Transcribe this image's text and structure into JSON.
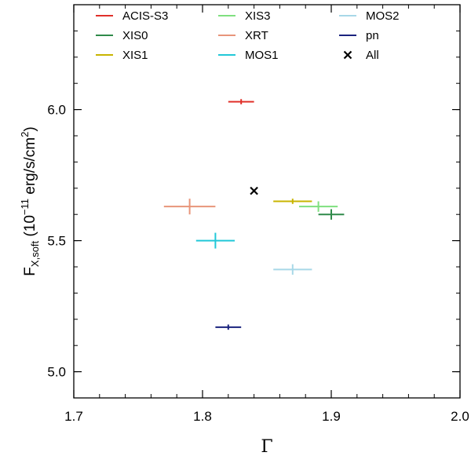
{
  "chart_data": {
    "type": "scatter",
    "title": "",
    "xlabel": "Γ",
    "ylabel": {
      "base": "F",
      "subscript": "X,soft",
      "open": " (10",
      "exponent": "−11",
      "unit": " erg/s/cm",
      "unit_exponent": "2",
      "close": ")"
    },
    "xlim": [
      1.7,
      2.0
    ],
    "ylim": [
      4.9,
      6.4
    ],
    "x_ticks": [
      1.7,
      1.8,
      1.9,
      2.0
    ],
    "x_tick_labels": [
      "1.7",
      "1.8",
      "1.9",
      "2.0"
    ],
    "y_ticks": [
      5.0,
      5.5,
      6.0
    ],
    "y_tick_labels": [
      "5.0",
      "5.5",
      "6.0"
    ],
    "x_minor_step": 0.02,
    "y_minor_step": 0.1,
    "grid": false,
    "legend_position": "top",
    "series": [
      {
        "name": "ACIS-S3",
        "color": "#e0302a",
        "marker": "errorbar",
        "x": 1.83,
        "xerr": 0.01,
        "y": 6.03,
        "yerr": 0.01
      },
      {
        "name": "XIS0",
        "color": "#2f8a4a",
        "marker": "errorbar",
        "x": 1.9,
        "xerr": 0.01,
        "y": 5.6,
        "yerr": 0.02
      },
      {
        "name": "XIS1",
        "color": "#c8b400",
        "marker": "errorbar",
        "x": 1.87,
        "xerr": 0.015,
        "y": 5.65,
        "yerr": 0.01
      },
      {
        "name": "XIS3",
        "color": "#7fe07f",
        "marker": "errorbar",
        "x": 1.89,
        "xerr": 0.015,
        "y": 5.63,
        "yerr": 0.02
      },
      {
        "name": "XRT",
        "color": "#e8957a",
        "marker": "errorbar",
        "x": 1.79,
        "xerr": 0.02,
        "y": 5.63,
        "yerr": 0.03
      },
      {
        "name": "MOS1",
        "color": "#22c8d8",
        "marker": "errorbar",
        "x": 1.81,
        "xerr": 0.015,
        "y": 5.5,
        "yerr": 0.03
      },
      {
        "name": "MOS2",
        "color": "#a8d8e8",
        "marker": "errorbar",
        "x": 1.87,
        "xerr": 0.015,
        "y": 5.39,
        "yerr": 0.02
      },
      {
        "name": "pn",
        "color": "#1a237e",
        "marker": "errorbar",
        "x": 1.82,
        "xerr": 0.01,
        "y": 5.17,
        "yerr": 0.01
      },
      {
        "name": "All",
        "color": "#000000",
        "marker": "x",
        "x": 1.84,
        "y": 5.69
      }
    ]
  }
}
